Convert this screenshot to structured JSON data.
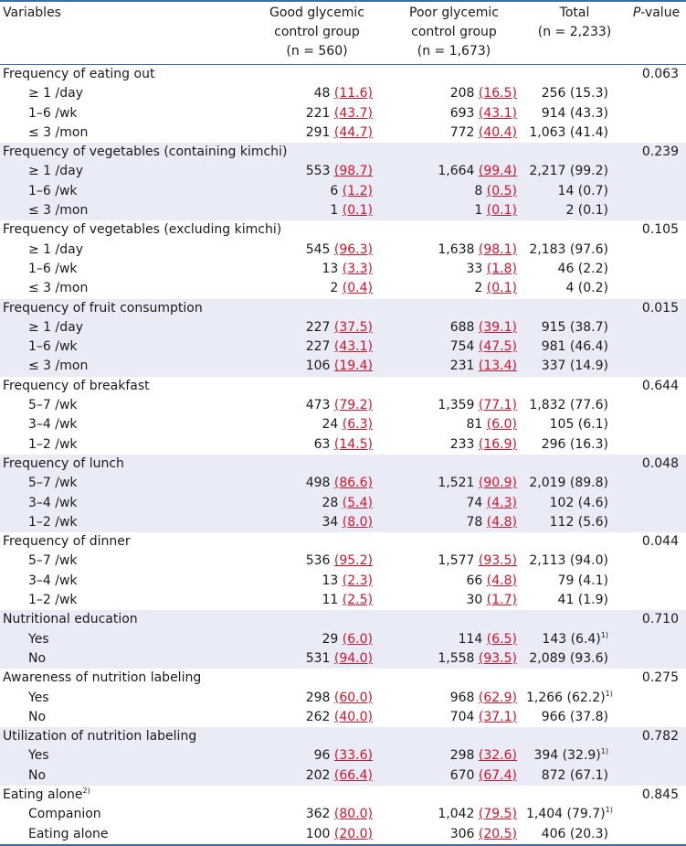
{
  "header": {
    "variables": "Variables",
    "good": [
      "Good glycemic",
      "control group",
      "(n = 560)"
    ],
    "poor": [
      "Poor glycemic",
      "control group",
      "(n = 1,673)"
    ],
    "total": [
      "Total",
      "(n = 2,233)"
    ],
    "p_italic": "P",
    "p_rest": "-value"
  },
  "groups": [
    {
      "label": "Frequency of eating out",
      "sup": "",
      "p": "0.063",
      "shade": false,
      "rows": [
        {
          "label": "≥ 1 /day",
          "gn": "48",
          "gp": "(11.6)",
          "pn": "208",
          "pp": "(16.5)",
          "total": "256 (15.3)",
          "tsup": ""
        },
        {
          "label": "1–6 /wk",
          "gn": "221",
          "gp": "(43.7)",
          "pn": "693",
          "pp": "(43.1)",
          "total": "914 (43.3)",
          "tsup": ""
        },
        {
          "label": "≤ 3 /mon",
          "gn": "291",
          "gp": "(44.7)",
          "pn": "772",
          "pp": "(40.4)",
          "total": "1,063 (41.4)",
          "tsup": ""
        }
      ]
    },
    {
      "label": "Frequency of vegetables (containing kimchi)",
      "sup": "",
      "p": "0.239",
      "shade": true,
      "rows": [
        {
          "label": "≥ 1 /day",
          "gn": "553",
          "gp": "(98.7)",
          "pn": "1,664",
          "pp": "(99.4)",
          "total": "2,217 (99.2)",
          "tsup": ""
        },
        {
          "label": "1–6 /wk",
          "gn": "6",
          "gp": "(1.2)",
          "pn": "8",
          "pp": "(0.5)",
          "total": "14 (0.7)",
          "tsup": ""
        },
        {
          "label": "≤ 3 /mon",
          "gn": "1",
          "gp": "(0.1)",
          "pn": "1",
          "pp": "(0.1)",
          "total": "2 (0.1)",
          "tsup": ""
        }
      ]
    },
    {
      "label": "Frequency of vegetables (excluding kimchi)",
      "sup": "",
      "p": "0.105",
      "shade": false,
      "rows": [
        {
          "label": "≥ 1 /day",
          "gn": "545",
          "gp": "(96.3)",
          "pn": "1,638",
          "pp": "(98.1)",
          "total": "2,183 (97.6)",
          "tsup": ""
        },
        {
          "label": "1–6 /wk",
          "gn": "13",
          "gp": "(3.3)",
          "pn": "33",
          "pp": "(1.8)",
          "total": "46 (2.2)",
          "tsup": ""
        },
        {
          "label": "≤ 3 /mon",
          "gn": "2",
          "gp": "(0.4)",
          "pn": "2",
          "pp": "(0.1)",
          "total": "4 (0.2)",
          "tsup": ""
        }
      ]
    },
    {
      "label": "Frequency of fruit consumption",
      "sup": "",
      "p": "0.015",
      "shade": true,
      "rows": [
        {
          "label": "≥ 1 /day",
          "gn": "227",
          "gp": "(37.5)",
          "pn": "688",
          "pp": "(39.1)",
          "total": "915 (38.7)",
          "tsup": ""
        },
        {
          "label": "1–6 /wk",
          "gn": "227",
          "gp": "(43.1)",
          "pn": "754",
          "pp": "(47.5)",
          "total": "981 (46.4)",
          "tsup": ""
        },
        {
          "label": "≤ 3 /mon",
          "gn": "106",
          "gp": "(19.4)",
          "pn": "231",
          "pp": "(13.4)",
          "total": "337 (14.9)",
          "tsup": ""
        }
      ]
    },
    {
      "label": "Frequency of breakfast",
      "sup": "",
      "p": "0.644",
      "shade": false,
      "rows": [
        {
          "label": "5–7 /wk",
          "gn": "473",
          "gp": "(79.2)",
          "pn": "1,359",
          "pp": "(77.1)",
          "total": "1,832 (77.6)",
          "tsup": ""
        },
        {
          "label": "3–4 /wk",
          "gn": "24",
          "gp": "(6.3)",
          "pn": "81",
          "pp": "(6.0)",
          "total": "105 (6.1)",
          "tsup": ""
        },
        {
          "label": "1–2 /wk",
          "gn": "63",
          "gp": "(14.5)",
          "pn": "233",
          "pp": "(16.9)",
          "total": "296 (16.3)",
          "tsup": ""
        }
      ]
    },
    {
      "label": "Frequency of lunch",
      "sup": "",
      "p": "0.048",
      "shade": true,
      "rows": [
        {
          "label": "5–7 /wk",
          "gn": "498",
          "gp": "(86.6)",
          "pn": "1,521",
          "pp": "(90.9)",
          "total": "2,019 (89.8)",
          "tsup": ""
        },
        {
          "label": "3–4 /wk",
          "gn": "28",
          "gp": "(5.4)",
          "pn": "74",
          "pp": "(4.3)",
          "total": "102 (4.6)",
          "tsup": ""
        },
        {
          "label": "1–2 /wk",
          "gn": "34",
          "gp": "(8.0)",
          "pn": "78",
          "pp": "(4.8)",
          "total": "112 (5.6)",
          "tsup": ""
        }
      ]
    },
    {
      "label": "Frequency of dinner",
      "sup": "",
      "p": "0.044",
      "shade": false,
      "rows": [
        {
          "label": "5–7 /wk",
          "gn": "536",
          "gp": "(95.2)",
          "pn": "1,577",
          "pp": "(93.5)",
          "total": "2,113 (94.0)",
          "tsup": ""
        },
        {
          "label": "3–4 /wk",
          "gn": "13",
          "gp": "(2.3)",
          "pn": "66",
          "pp": "(4.8)",
          "total": "79 (4.1)",
          "tsup": ""
        },
        {
          "label": "1–2 /wk",
          "gn": "11",
          "gp": "(2.5)",
          "pn": "30",
          "pp": "(1.7)",
          "total": "41 (1.9)",
          "tsup": ""
        }
      ]
    },
    {
      "label": "Nutritional education",
      "sup": "",
      "p": "0.710",
      "shade": true,
      "rows": [
        {
          "label": "Yes",
          "gn": "29",
          "gp": "(6.0)",
          "pn": "114",
          "pp": "(6.5)",
          "total": "143 (6.4)",
          "tsup": "1)"
        },
        {
          "label": "No",
          "gn": "531",
          "gp": "(94.0)",
          "pn": "1,558",
          "pp": "(93.5)",
          "total": "2,089 (93.6)",
          "tsup": ""
        }
      ]
    },
    {
      "label": "Awareness of nutrition labeling",
      "sup": "",
      "p": "0.275",
      "shade": false,
      "rows": [
        {
          "label": "Yes",
          "gn": "298",
          "gp": "(60.0)",
          "pn": "968",
          "pp": "(62.9)",
          "total": "1,266 (62.2)",
          "tsup": "1)"
        },
        {
          "label": "No",
          "gn": "262",
          "gp": "(40.0)",
          "pn": "704",
          "pp": "(37.1)",
          "total": "966 (37.8)",
          "tsup": ""
        }
      ]
    },
    {
      "label": "Utilization of nutrition labeling",
      "sup": "",
      "p": "0.782",
      "shade": true,
      "rows": [
        {
          "label": "Yes",
          "gn": "96",
          "gp": "(33.6)",
          "pn": "298",
          "pp": "(32.6)",
          "total": "394 (32.9)",
          "tsup": "1)"
        },
        {
          "label": "No",
          "gn": "202",
          "gp": "(66.4)",
          "pn": "670",
          "pp": "(67.4)",
          "total": "872 (67.1)",
          "tsup": ""
        }
      ]
    },
    {
      "label": "Eating alone",
      "sup": "2)",
      "p": "0.845",
      "shade": false,
      "rows": [
        {
          "label": "Companion",
          "gn": "362",
          "gp": "(80.0)",
          "pn": "1,042",
          "pp": "(79.5)",
          "total": "1,404 (79.7)",
          "tsup": "1)"
        },
        {
          "label": "Eating alone",
          "gn": "100",
          "gp": "(20.0)",
          "pn": "306",
          "pp": "(20.5)",
          "total": "406 (20.3)",
          "tsup": ""
        }
      ]
    }
  ]
}
